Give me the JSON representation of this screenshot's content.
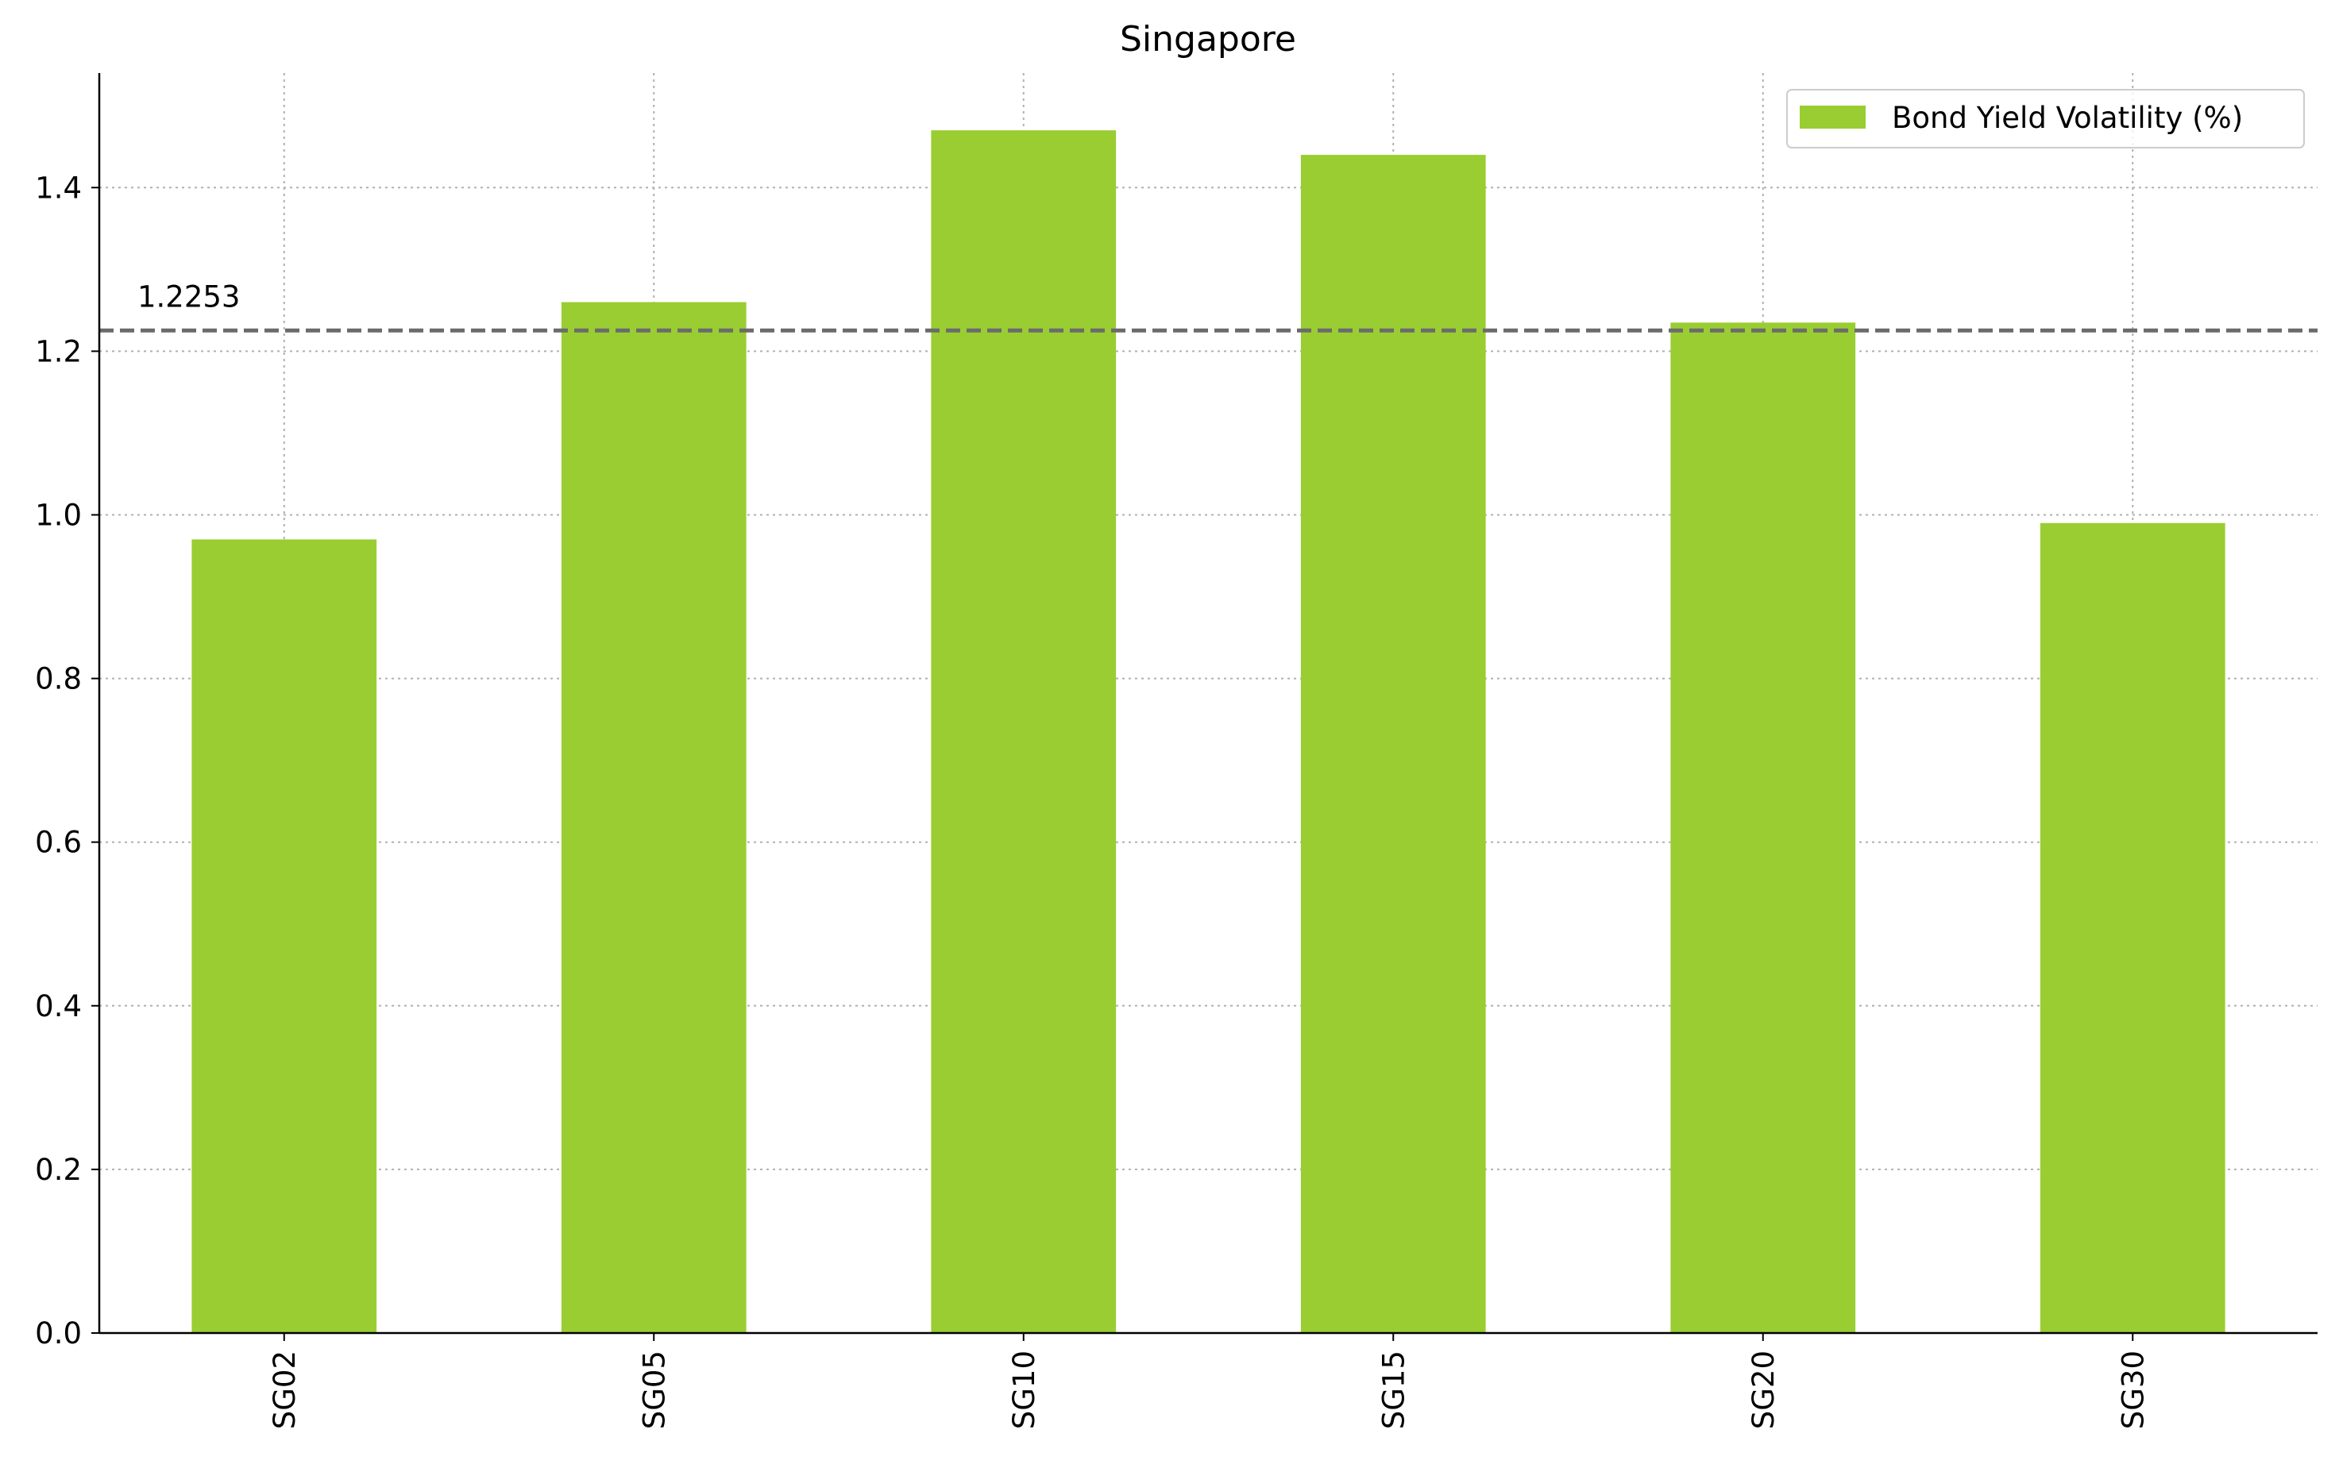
{
  "chart_data": {
    "type": "bar",
    "title": "Singapore",
    "xlabel": "",
    "ylabel": "",
    "categories": [
      "SG02",
      "SG05",
      "SG10",
      "SG15",
      "SG20",
      "SG30"
    ],
    "series": [
      {
        "name": "Bond Yield Volatility (%)",
        "values": [
          0.97,
          1.26,
          1.47,
          1.44,
          1.235,
          0.99
        ],
        "color": "#9acd32"
      }
    ],
    "ylim": [
      0,
      1.54
    ],
    "yticks": [
      "0.0",
      "0.2",
      "0.4",
      "0.6",
      "0.8",
      "1.0",
      "1.2",
      "1.4"
    ],
    "grid": true,
    "legend_position": "top-right",
    "reference_line": {
      "value": 1.2253,
      "label": "1.2253",
      "color": "#6b6b6b",
      "style": "dashed"
    }
  }
}
